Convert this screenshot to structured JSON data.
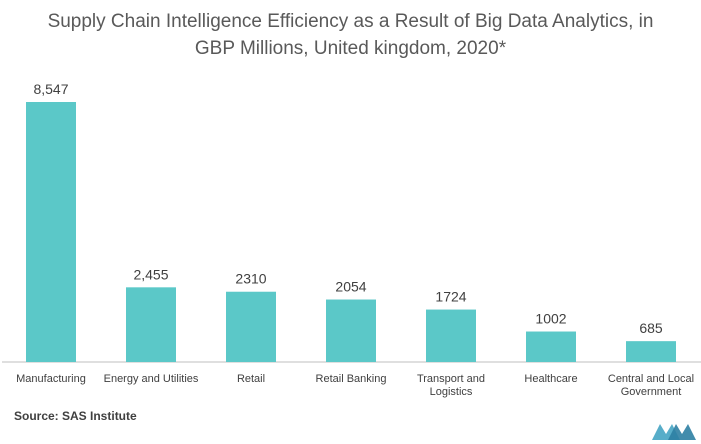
{
  "chart_data": {
    "type": "bar",
    "title_line1": "Supply Chain Intelligence Efficiency  as a Result of Big Data Analytics, in",
    "title_line2": "GBP Millions, United kingdom, 2020*",
    "categories": [
      [
        "Manufacturing"
      ],
      [
        "Energy and Utilities"
      ],
      [
        "Retail"
      ],
      [
        "Retail  Banking"
      ],
      [
        "Transport and",
        "Logistics"
      ],
      [
        "Healthcare"
      ],
      [
        "Central  and Local",
        "Government"
      ]
    ],
    "values": [
      8547,
      2455,
      2310,
      2054,
      1724,
      1002,
      685
    ],
    "value_labels": [
      "8,547",
      "2,455",
      "2310",
      "2054",
      "1724",
      "1002",
      "685"
    ],
    "xlabel": "",
    "ylabel": "",
    "ylim": [
      0,
      8547
    ],
    "grid": false,
    "legend": "none",
    "bar_color": "#5BC8C8",
    "axis_color": "#bfbfbf"
  },
  "source": "Source: SAS Institute",
  "logo": {
    "icon": "mordor-intelligence-logo",
    "color": "#3a9fbf"
  }
}
